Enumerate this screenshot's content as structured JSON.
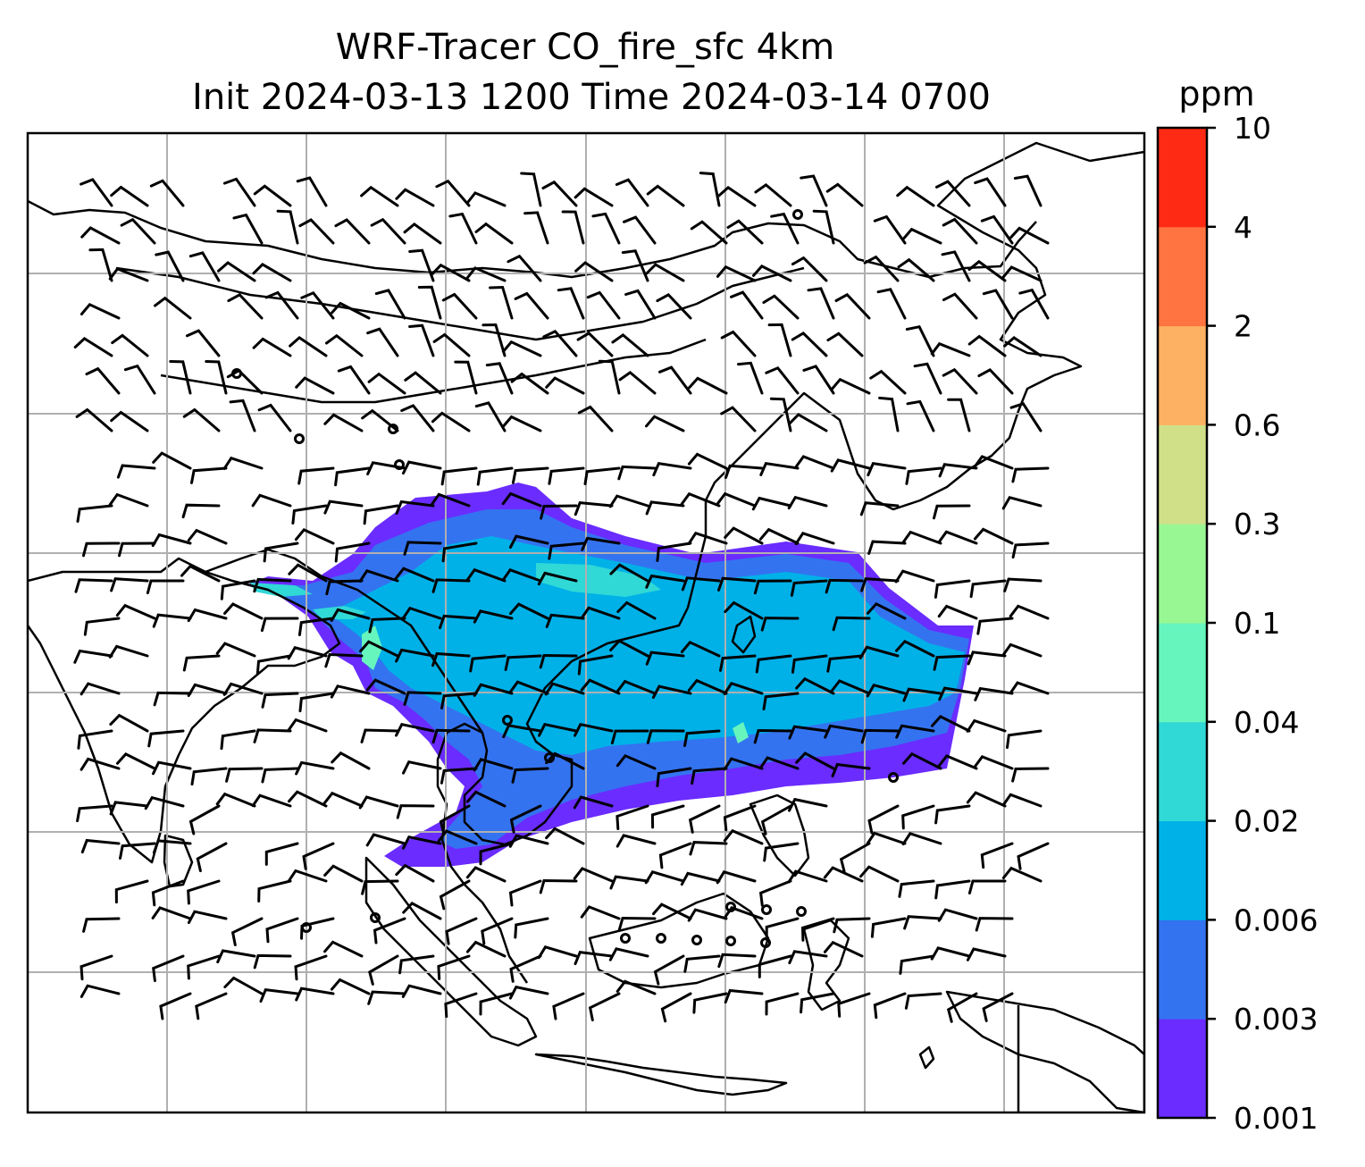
{
  "title": {
    "line1": "WRF-Tracer CO_fire_sfc 4km",
    "line2": "Init 2024-03-13 1200 Time 2024-03-14 0700"
  },
  "colorbar": {
    "unit": "ppm",
    "levels": [
      "0.001",
      "0.003",
      "0.006",
      "0.02",
      "0.04",
      "0.1",
      "0.3",
      "0.6",
      "2",
      "4",
      "10"
    ],
    "colors": [
      "#6a2cff",
      "#3473f0",
      "#00b1e8",
      "#30d8d6",
      "#66f5bd",
      "#99f793",
      "#cfe088",
      "#fdb162",
      "#ff7440",
      "#ff2a14"
    ]
  },
  "map": {
    "coastline_color": "#000000",
    "gridline_color": "#b0b0b0",
    "wind_barb_color": "#000000"
  }
}
